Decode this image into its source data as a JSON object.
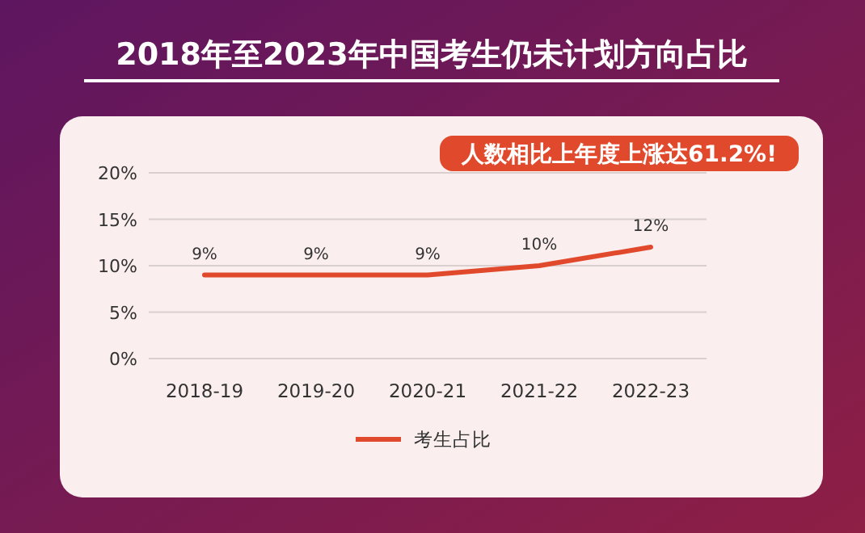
{
  "chart_data": {
    "type": "line",
    "title": "2018年至2023年中国考生仍未计划方向占比",
    "categories": [
      "2018-19",
      "2019-20",
      "2020-21",
      "2021-22",
      "2022-23"
    ],
    "series": [
      {
        "name": "考生占比",
        "color": "#e0492b",
        "values": [
          9,
          9,
          9,
          10,
          12
        ]
      }
    ],
    "ylim": [
      0,
      20
    ],
    "yticks": [
      {
        "value": 0,
        "label": "0%"
      },
      {
        "value": 5,
        "label": "5%"
      },
      {
        "value": 10,
        "label": "10%"
      },
      {
        "value": 15,
        "label": "15%"
      },
      {
        "value": 20,
        "label": "20%"
      }
    ],
    "value_labels": [
      "9%",
      "9%",
      "9%",
      "10%",
      "12%"
    ],
    "annotations": [
      "人数相比上年度上涨达61.2%!"
    ],
    "grid": "y",
    "legend": "bottom",
    "marker": "none",
    "line_style": "solid"
  }
}
